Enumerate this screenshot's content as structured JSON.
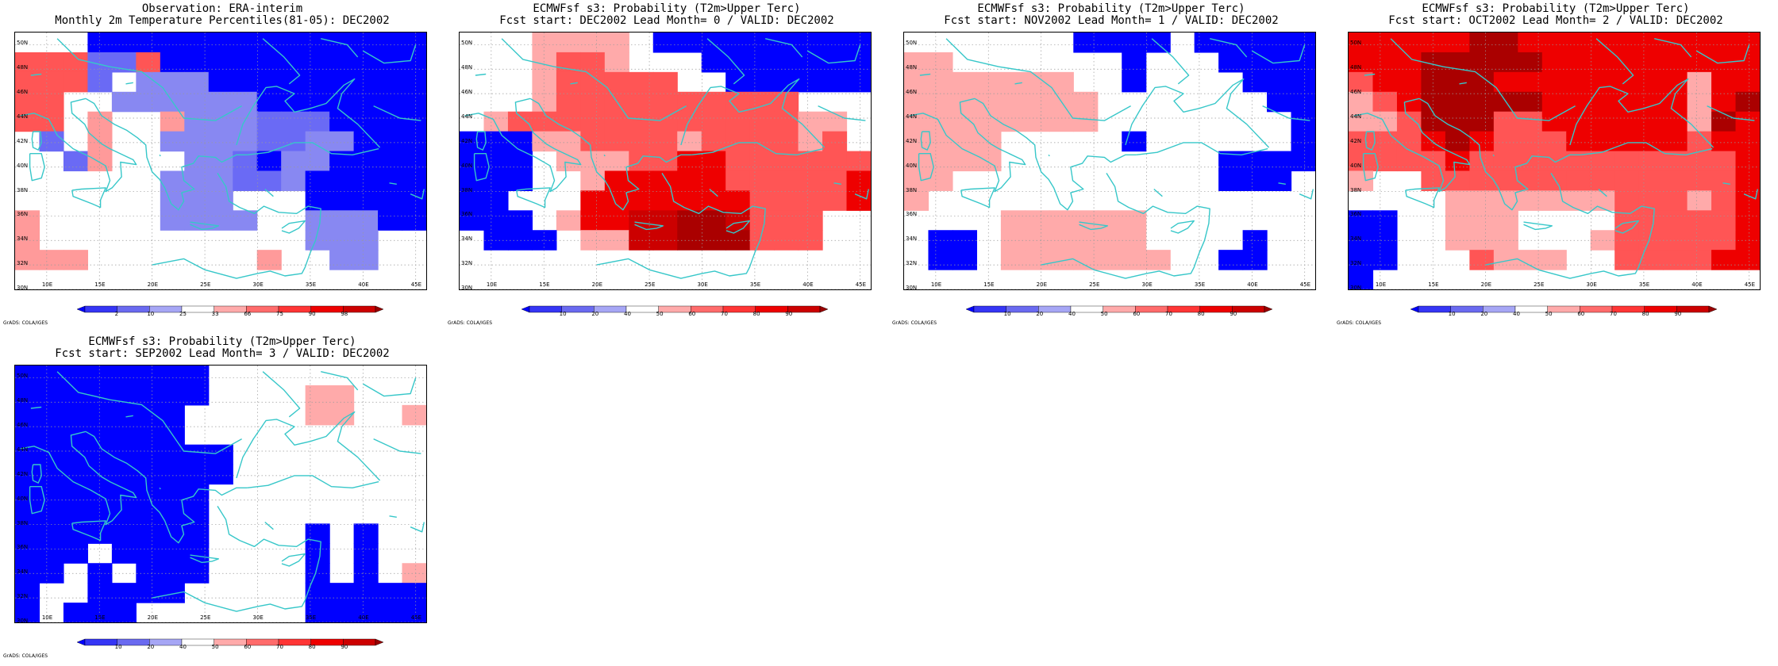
{
  "colors": {
    "coast": "#37c7c9",
    "grid": "#9a9a9a",
    "frame": "#000000",
    "levels": [
      "#0000ff",
      "#3535f5",
      "#6a6af0",
      "#a6a6f5",
      "#ffffff",
      "#ffaaaa",
      "#ff6b6b",
      "#ff3535",
      "#ee0000",
      "#cc0000",
      "#990000"
    ]
  },
  "map": {
    "lon_range": [
      7,
      46
    ],
    "lat_range": [
      30,
      51
    ],
    "lat_ticks": [
      "30N",
      "32N",
      "34N",
      "36N",
      "38N",
      "40N",
      "42N",
      "44N",
      "46N",
      "48N",
      "50N"
    ],
    "lon_ticks": [
      "10E",
      "15E",
      "20E",
      "25E",
      "30E",
      "35E",
      "40E",
      "45E"
    ]
  },
  "credit": "GrADS: COLA/IGES",
  "panels": [
    {
      "title1": "Observation: ERA-interim",
      "title2": "Monthly 2m Temperature Percentiles(81-05): DEC2002",
      "colorbar": [
        "2",
        "10",
        "25",
        "33",
        "66",
        "75",
        "90",
        "98"
      ],
      "grid": [
        "WWWBBBBBBBBBBBBBB",
        "DDDMMDBBBBBBBBBBB",
        "DDDMWLLLBBBBBBBBB",
        "DDWWLLLLLLBBBBBBB",
        "DDWSWWSLLLMMMBBBB",
        "WMWSWWLLLLMMLLBBB",
        "WWMSWWWLLMBLLBBBB",
        "WWWWWWLLLMMLBBBBB",
        "WWWWWWLLLWWWBBBBB",
        "SWWWWWLLLLWWLLLBB",
        "SWWWWWWWWWWWLLLWW",
        "SSSWWWWWWWSWWLLWW",
        "WWWWWWWWWWWWWWWWW"
      ]
    },
    {
      "title1": "ECMWFsf s3: Probability (T2m>Upper Terc)",
      "title2": "Fcst start: DEC2002  Lead Month= 0 / VALID: DEC2002",
      "colorbar": [
        "10",
        "20",
        "40",
        "50",
        "60",
        "70",
        "80",
        "90"
      ],
      "grid": [
        "WWWSSSSWBBBBBBBBB",
        "WWWSMMSWWWBBBBBBB",
        "WWWSMMMMMWWBBBBBB",
        "WWWSMMMMMMMMMMWWW",
        "WSMMMMMMMMMMMMSSW",
        "BBBSSMMMMSMMMMSMW",
        "BBBWSSSMMRRMMMMMM",
        "BBBWWSRRRRRMMMMMR",
        "BBWWWRRRRRRRMMMMR",
        "BBBWSRRHHKKHMMMWW",
        "WBBBWSSHHKKKMMMWW",
        "WWWWWWWWWWWWWWWWW",
        "WWWWWWWWWWWWWWWWW"
      ]
    },
    {
      "title1": "ECMWFsf s3: Probability (T2m>Upper Terc)",
      "title2": "Fcst start: NOV2002  Lead Month= 1 / VALID: DEC2002",
      "colorbar": [
        "10",
        "20",
        "40",
        "50",
        "60",
        "70",
        "80",
        "90"
      ],
      "grid": [
        "WWWWWWWBBBBWBBBBB",
        "SSWWWWWWWBWWWBBBB",
        "SSSSSSSWWBWWWWBBB",
        "SSSSSSSSWWWWWWWBB",
        "SSSSSSSSWWWWWWWWB",
        "SSSSWWWWWBWWWWWWB",
        "SSSSWWWWWWWWWBBBB",
        "SSWWWWWWWWWWWBBBW",
        "SWWWWWWWWWWWWWWWW",
        "WWWWSSSSSSWWWWWWW",
        "WBBWSSSSSSWWWWBWW",
        "WBBWSSSSSSSWWBBWW",
        "WWWWWWWWWWWWWWWWW"
      ]
    },
    {
      "title1": "ECMWFsf s3: Probability (T2m>Upper Terc)",
      "title2": "Fcst start: OCT2002  Lead Month= 2 / VALID: DEC2002",
      "colorbar": [
        "10",
        "20",
        "40",
        "50",
        "60",
        "70",
        "80",
        "90"
      ],
      "grid": [
        "RRRRRKKRRRRRRRRRR",
        "RRRKKKKKRRRRRRRRR",
        "MRRKKKRRRRRRRRSRR",
        "SMRKKKKKRRRRRRSRK",
        "SSMKKKMMRRRRRRSKR",
        "MMMRKRMMMRRRRRMRR",
        "MMMMRMMMMMMMMMMMR",
        "SWWMMMMMMMMMMMMMR",
        "WWWWSSSSSSSMMMSMR",
        "BBWWSSSWWWWMMMMMR",
        "BBWWSSSWWWSMMMMMR",
        "BBWWWMSSSWWMMMMRR",
        "BWWWWWWWWWWWWWWWW"
      ]
    },
    {
      "title1": "ECMWFsf s3: Probability (T2m>Upper Terc)",
      "title2": "Fcst start: SEP2002  Lead Month= 3 / VALID: DEC2002",
      "colorbar": [
        "10",
        "20",
        "40",
        "50",
        "60",
        "70",
        "80",
        "90"
      ],
      "grid": [
        "BBBBBBBBWWWWWWWWW",
        "BBBBBBBBWWWWSSWWW",
        "BBBBBBBWWWWWSSWWS",
        "BBBBBBBWWWWWWWWWW",
        "BBBBBBBBBWWWWWWWW",
        "BBBBBBBBBWWWWWWWW",
        "BBBBBBBBWWWWWWWWW",
        "BBBBBBBBWWWWWWWWW",
        "BBBBBBBBWWWWBWBWW",
        "BBBWBBBBWWWWBWBWW",
        "BBWBWBBBWWWWBWBWS",
        "BWWBBBBWWWWWBBBBB",
        "BWBBBWWWWWWWBBBBB"
      ]
    }
  ]
}
